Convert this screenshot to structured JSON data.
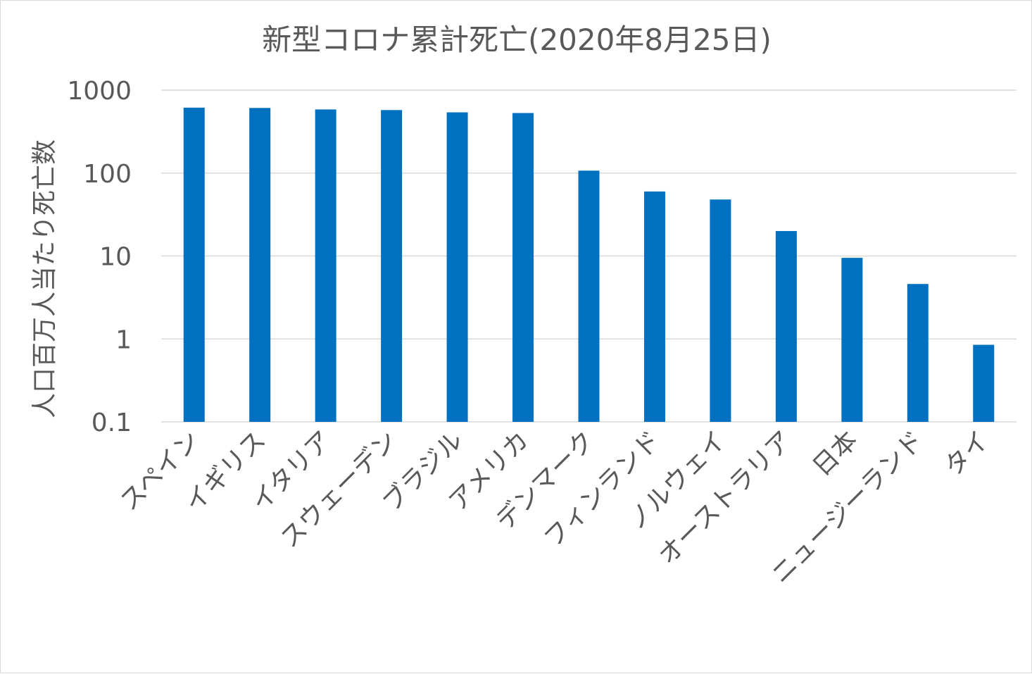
{
  "chart_data": {
    "type": "bar",
    "title": "新型コロナ累計死亡(2020年8月25日)",
    "xlabel": "",
    "ylabel": "人口百万人当たり死亡数",
    "yscale": "log",
    "ylim": [
      0.1,
      1000
    ],
    "yticks": [
      {
        "value": 1000,
        "label": "1000"
      },
      {
        "value": 100,
        "label": "100"
      },
      {
        "value": 10,
        "label": "10"
      },
      {
        "value": 1,
        "label": "1"
      },
      {
        "value": 0.1,
        "label": "0.1"
      }
    ],
    "grid": true,
    "legend": "none",
    "bar_color": "#0070c0",
    "categories": [
      "スペイン",
      "イギリス",
      "イタリア",
      "スウェーデン",
      "ブラジル",
      "アメリカ",
      "デンマーク",
      "フィンランド",
      "ノルウェイ",
      "オーストラリア",
      "日本",
      "ニュージーランド",
      "タイ"
    ],
    "values": [
      615,
      610,
      585,
      575,
      540,
      530,
      107,
      60,
      48,
      20,
      9.5,
      4.6,
      0.85
    ]
  }
}
